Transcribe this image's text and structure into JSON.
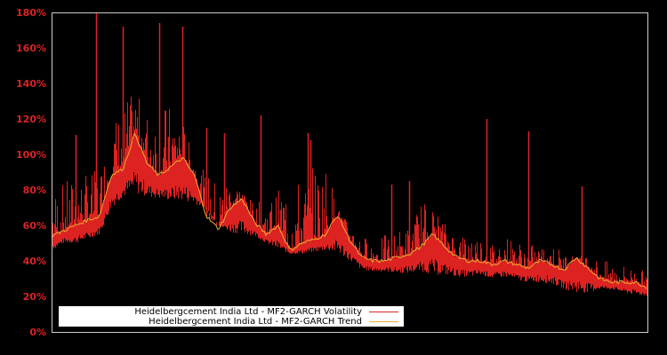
{
  "chart_data": {
    "type": "line",
    "title": "",
    "xlabel": "",
    "ylabel": "",
    "ylim": [
      0,
      180
    ],
    "yticks": [
      0,
      20,
      40,
      60,
      80,
      100,
      120,
      140,
      160,
      180
    ],
    "ytick_labels": [
      "0%",
      "20%",
      "40%",
      "60%",
      "80%",
      "100%",
      "120%",
      "140%",
      "160%",
      "180%"
    ],
    "grid": false,
    "legend_position": "lower left",
    "colors": {
      "background": "#000000",
      "axis": "#cccccc",
      "tick_label": "#dd2222",
      "volatility": "#dd2222",
      "trend": "#e8b030"
    },
    "x": [
      0,
      2,
      4,
      6,
      8,
      10,
      12,
      14,
      16,
      18,
      20,
      22,
      24,
      26,
      28,
      30,
      32,
      34,
      36,
      38,
      40,
      42,
      44,
      46,
      48,
      50,
      52,
      54,
      56,
      58,
      60,
      62,
      64,
      66,
      68,
      70,
      72,
      74,
      76,
      78,
      80,
      82,
      84,
      86,
      88,
      90,
      92,
      94,
      96,
      98,
      100
    ],
    "series": [
      {
        "name": "Heidelbergcement India Ltd - MF2-GARCH Volatility",
        "low": [
          46,
          50,
          50,
          52,
          55,
          70,
          76,
          78,
          76,
          75,
          74,
          74,
          72,
          70,
          60,
          56,
          55,
          54,
          50,
          46,
          44,
          44,
          45,
          46,
          44,
          40,
          35,
          34,
          34,
          33,
          33,
          34,
          32,
          32,
          31,
          31,
          32,
          30,
          31,
          29,
          28,
          28,
          27,
          24,
          22,
          22,
          24,
          24,
          22,
          21,
          20
        ],
        "high": [
          80,
          85,
          88,
          90,
          92,
          118,
          130,
          135,
          125,
          130,
          128,
          120,
          95,
          90,
          85,
          88,
          80,
          72,
          75,
          80,
          90,
          85,
          95,
          98,
          70,
          60,
          55,
          52,
          55,
          58,
          60,
          75,
          70,
          62,
          55,
          58,
          55,
          50,
          55,
          52,
          50,
          48,
          50,
          45,
          42,
          45,
          40,
          40,
          38,
          36,
          34
        ],
        "spikes": [
          [
            4,
            111
          ],
          [
            7.5,
            180
          ],
          [
            12,
            172
          ],
          [
            18,
            174
          ],
          [
            22,
            172
          ],
          [
            26,
            115
          ],
          [
            29,
            112
          ],
          [
            35,
            122
          ],
          [
            43,
            112
          ],
          [
            43.5,
            108
          ],
          [
            57,
            83
          ],
          [
            60,
            85
          ],
          [
            73,
            120
          ],
          [
            80,
            113
          ],
          [
            89,
            82
          ]
        ]
      },
      {
        "name": "Heidelbergcement India Ltd - MF2-GARCH Trend",
        "values": [
          54,
          57,
          60,
          63,
          65,
          88,
          92,
          112,
          95,
          88,
          93,
          98,
          88,
          65,
          58,
          70,
          75,
          62,
          55,
          60,
          46,
          50,
          52,
          55,
          66,
          52,
          42,
          40,
          40,
          42,
          44,
          48,
          55,
          48,
          42,
          40,
          40,
          38,
          40,
          38,
          36,
          40,
          38,
          35,
          42,
          36,
          30,
          28,
          28,
          28,
          25
        ]
      }
    ]
  },
  "legend": {
    "items": [
      {
        "label": "Heidelbergcement India Ltd - MF2-GARCH Volatility",
        "color": "#dd2222"
      },
      {
        "label": "Heidelbergcement India Ltd - MF2-GARCH Trend",
        "color": "#e8b030"
      }
    ]
  }
}
